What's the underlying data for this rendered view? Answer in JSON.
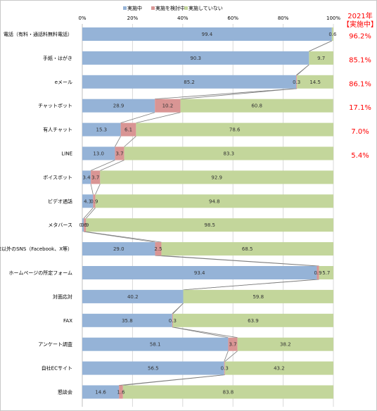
{
  "chart_data": {
    "type": "bar",
    "orientation": "horizontal",
    "stacked": true,
    "percent_stacked": true,
    "title": "",
    "xlabel": "",
    "ylabel": "",
    "xlim": [
      0,
      100
    ],
    "x_ticks": [
      "0%",
      "20%",
      "40%",
      "60%",
      "80%",
      "100%"
    ],
    "grid": true,
    "legend_position": "top",
    "categories": [
      "電話（有料・通話料無料電話）",
      "手紙・はがき",
      "eメール",
      "チャットボット",
      "有人チャット",
      "LINE",
      "ボイスボット",
      "ビデオ通話",
      "メタバース",
      "LINE以外のSNS（Facebook、X等）",
      "ホームページの所定フォーム",
      "対面応対",
      "FAX",
      "アンケート調査",
      "自社ECサイト",
      "懇談会"
    ],
    "series": [
      {
        "name": "実施中",
        "color": "#95b3d7",
        "values": [
          99.4,
          90.3,
          85.2,
          28.9,
          15.3,
          13.0,
          3.4,
          4.3,
          0.6,
          29.0,
          93.4,
          40.2,
          35.8,
          58.1,
          56.5,
          14.6
        ],
        "labels": [
          "99.4",
          "90.3",
          "85.2",
          "28.9",
          "15.3",
          "13.0",
          "3.4",
          "4.3",
          "0.6",
          "29.0",
          "93.4",
          "40.2",
          "35.8",
          "58.1",
          "56.5",
          "14.6"
        ]
      },
      {
        "name": "実施を検討中",
        "color": "#d99594",
        "values": [
          0,
          0,
          0.3,
          10.2,
          6.1,
          3.7,
          3.7,
          0.9,
          0.9,
          2.5,
          0.9,
          0,
          0.3,
          3.7,
          0.3,
          1.6
        ],
        "labels": [
          "",
          "",
          "0.3",
          "10.2",
          "6.1",
          "3.7",
          "3.7",
          "0.9",
          "0.9",
          "2.5",
          "0.9",
          "",
          "0.3",
          "3.7",
          "0.3",
          "1.6"
        ]
      },
      {
        "name": "実施していない",
        "color": "#c3d69b",
        "values": [
          0.6,
          9.7,
          14.5,
          60.8,
          78.6,
          83.3,
          92.9,
          94.8,
          98.5,
          68.5,
          5.7,
          59.8,
          63.9,
          38.2,
          43.2,
          83.8
        ],
        "labels": [
          "0.6",
          "9.7",
          "14.5",
          "60.8",
          "78.6",
          "83.3",
          "92.9",
          "94.8",
          "98.5",
          "68.5",
          "5.7",
          "59.8",
          "63.9",
          "38.2",
          "43.2",
          "83.8"
        ]
      }
    ],
    "side_note": {
      "header_line1": "2021年",
      "header_line2": "【実施中】",
      "values": [
        "96.2%",
        "85.1%",
        "86.1%",
        "17.1%",
        "7.0%",
        "5.4%"
      ]
    }
  }
}
